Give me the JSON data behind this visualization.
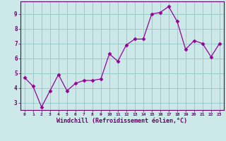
{
  "x": [
    0,
    1,
    2,
    3,
    4,
    5,
    6,
    7,
    8,
    9,
    10,
    11,
    12,
    13,
    14,
    15,
    16,
    17,
    18,
    19,
    20,
    21,
    22,
    23
  ],
  "y": [
    4.7,
    4.1,
    2.7,
    3.8,
    4.9,
    3.8,
    4.3,
    4.5,
    4.5,
    4.6,
    6.3,
    5.8,
    6.9,
    7.3,
    7.3,
    9.0,
    9.1,
    9.5,
    8.5,
    6.6,
    7.2,
    7.0,
    6.1,
    7.0
  ],
  "xlabel": "Windchill (Refroidissement éolien,°C)",
  "xlim": [
    -0.5,
    23.5
  ],
  "ylim": [
    2.5,
    9.85
  ],
  "yticks": [
    3,
    4,
    5,
    6,
    7,
    8,
    9
  ],
  "xticks": [
    0,
    1,
    2,
    3,
    4,
    5,
    6,
    7,
    8,
    9,
    10,
    11,
    12,
    13,
    14,
    15,
    16,
    17,
    18,
    19,
    20,
    21,
    22,
    23
  ],
  "line_color": "#990099",
  "marker": "D",
  "marker_size": 2.5,
  "bg_color": "#cce8e8",
  "grid_color": "#99cccc",
  "spine_color": "#660066",
  "label_color": "#660066",
  "tick_color": "#660066"
}
